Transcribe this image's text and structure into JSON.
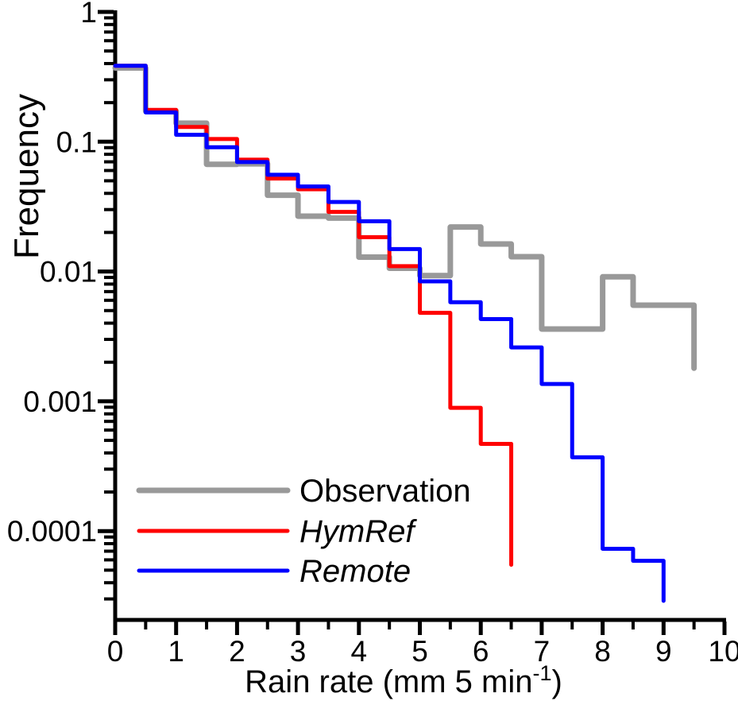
{
  "chart_data": {
    "type": "step-histogram",
    "title": "",
    "ylabel": "Frequency",
    "xlabel": {
      "prefix": "Rain rate  (mm 5 min",
      "superscript": "-1",
      "suffix": ")"
    },
    "x_axis": {
      "min": 0,
      "max": 10,
      "major_ticks": [
        0,
        1,
        2,
        3,
        4,
        5,
        6,
        7,
        8,
        9,
        10
      ],
      "major_tick_labels": [
        "0",
        "1",
        "2",
        "3",
        "4",
        "5",
        "6",
        "7",
        "8",
        "9",
        "10"
      ],
      "minor_tick_step": 0.5,
      "grid": false
    },
    "y_axis": {
      "scale": "log",
      "min": 2e-05,
      "max": 1,
      "major_ticks": [
        1,
        0.1,
        0.01,
        0.001,
        0.0001
      ],
      "major_tick_labels": [
        "1",
        "0.1",
        "0.01",
        "0.001",
        "0.0001"
      ],
      "minor_ticks": "mantissas 2-9 each decade",
      "grid": false
    },
    "bin_width": 0.5,
    "series": [
      {
        "name": "Observation",
        "color": "#999999",
        "line_width": 7,
        "italic": false,
        "bin_start": 0,
        "values": [
          0.37,
          0.172,
          0.139,
          0.067,
          0.0675,
          0.0387,
          0.0267,
          0.0258,
          0.0129,
          0.0106,
          0.0093,
          0.022,
          0.0163,
          0.013,
          0.0036,
          0.0036,
          0.0091,
          0.0055,
          0.0055
        ],
        "end_value": 0.0018
      },
      {
        "name": "HymRef",
        "color": "#ff0000",
        "line_width": 5,
        "italic": true,
        "bin_start": 0,
        "values": [
          0.385,
          0.176,
          0.13,
          0.105,
          0.0727,
          0.052,
          0.043,
          0.0288,
          0.0184,
          0.011,
          0.0048,
          0.00089,
          0.00047
        ],
        "end_value": 5.5e-05
      },
      {
        "name": "Remote",
        "color": "#0000ff",
        "line_width": 5,
        "italic": true,
        "bin_start": 0,
        "values": [
          0.385,
          0.168,
          0.113,
          0.0906,
          0.0697,
          0.0556,
          0.0452,
          0.0343,
          0.0244,
          0.0149,
          0.0084,
          0.0058,
          0.0043,
          0.0026,
          0.00136,
          0.00037,
          7.3e-05,
          5.9e-05
        ],
        "end_value": 2.9e-05
      }
    ],
    "legend": {
      "position": "lower-left",
      "entries": [
        "Observation",
        "HymRef",
        "Remote"
      ]
    }
  }
}
